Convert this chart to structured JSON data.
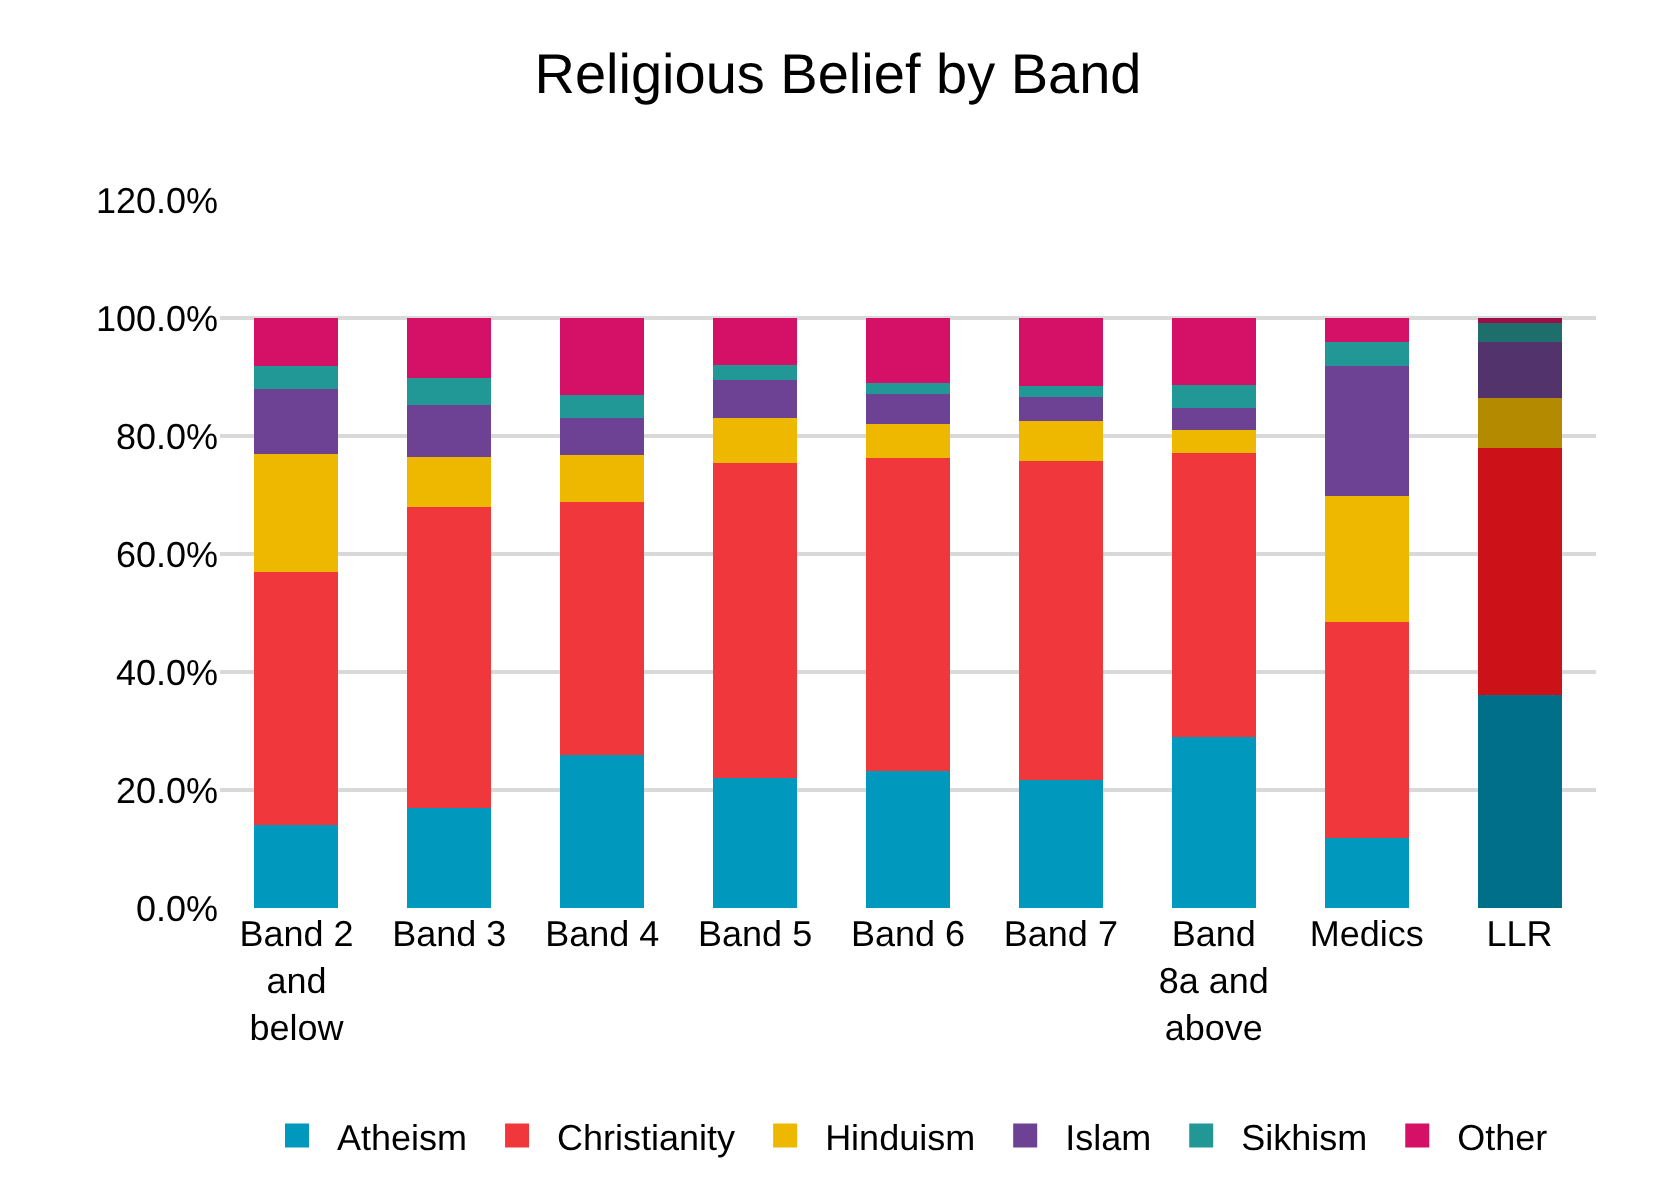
{
  "chart_data": {
    "type": "bar",
    "stacked": true,
    "title": "Religious Belief by Band",
    "categories": [
      "Band 2 and below",
      "Band 3",
      "Band 4",
      "Band 5",
      "Band 6",
      "Band 7",
      "Band 8a and above",
      "Medics",
      "LLR"
    ],
    "series": [
      {
        "name": "Atheism",
        "color": "#0099bd",
        "colors": [
          "#0099bd",
          "#0099bd",
          "#0099bd",
          "#0099bd",
          "#0099bd",
          "#0099bd",
          "#0099bd",
          "#0099bd",
          "#006f8a"
        ],
        "values": [
          14.1,
          17.0,
          26.0,
          22.1,
          23.3,
          21.7,
          29.0,
          11.8,
          36.1
        ]
      },
      {
        "name": "Christianity",
        "color": "#f0383c",
        "colors": [
          "#f0383c",
          "#f0383c",
          "#f0383c",
          "#f0383c",
          "#f0383c",
          "#f0383c",
          "#f0383c",
          "#f0383c",
          "#cc1218"
        ],
        "values": [
          42.8,
          51.0,
          42.8,
          53.3,
          52.9,
          54.1,
          48.2,
          36.7,
          41.9
        ]
      },
      {
        "name": "Hinduism",
        "color": "#eeb800",
        "colors": [
          "#eeb800",
          "#eeb800",
          "#eeb800",
          "#eeb800",
          "#eeb800",
          "#eeb800",
          "#eeb800",
          "#eeb800",
          "#b38a00"
        ],
        "values": [
          20.1,
          8.5,
          7.9,
          7.6,
          5.9,
          6.8,
          3.9,
          21.3,
          8.4
        ]
      },
      {
        "name": "Islam",
        "color": "#6d4294",
        "colors": [
          "#6d4294",
          "#6d4294",
          "#6d4294",
          "#6d4294",
          "#6d4294",
          "#6d4294",
          "#6d4294",
          "#6d4294",
          "#52336b"
        ],
        "values": [
          11.0,
          8.8,
          6.4,
          6.5,
          5.0,
          4.0,
          3.6,
          22.1,
          9.6
        ]
      },
      {
        "name": "Sikhism",
        "color": "#219896",
        "colors": [
          "#219896",
          "#219896",
          "#219896",
          "#219896",
          "#219896",
          "#219896",
          "#219896",
          "#219896",
          "#1e6e6c"
        ],
        "values": [
          3.8,
          4.5,
          3.9,
          2.6,
          1.9,
          1.8,
          3.9,
          4.0,
          3.1
        ]
      },
      {
        "name": "Other",
        "color": "#d41166",
        "colors": [
          "#d41166",
          "#d41166",
          "#d41166",
          "#d41166",
          "#d41166",
          "#d41166",
          "#d41166",
          "#d41166",
          "#9c0d4a"
        ],
        "values": [
          8.2,
          10.2,
          13.0,
          7.9,
          11.0,
          11.6,
          11.4,
          4.1,
          0.9
        ]
      }
    ],
    "ylim": [
      0,
      120
    ],
    "yticks": [
      {
        "value": 0,
        "label": "0.0%"
      },
      {
        "value": 20,
        "label": "20.0%"
      },
      {
        "value": 40,
        "label": "40.0%"
      },
      {
        "value": 60,
        "label": "60.0%"
      },
      {
        "value": 80,
        "label": "80.0%"
      },
      {
        "value": 100,
        "label": "100.0%"
      },
      {
        "value": 120,
        "label": "120.0%"
      }
    ],
    "grid": "y",
    "legend": "bottom"
  }
}
